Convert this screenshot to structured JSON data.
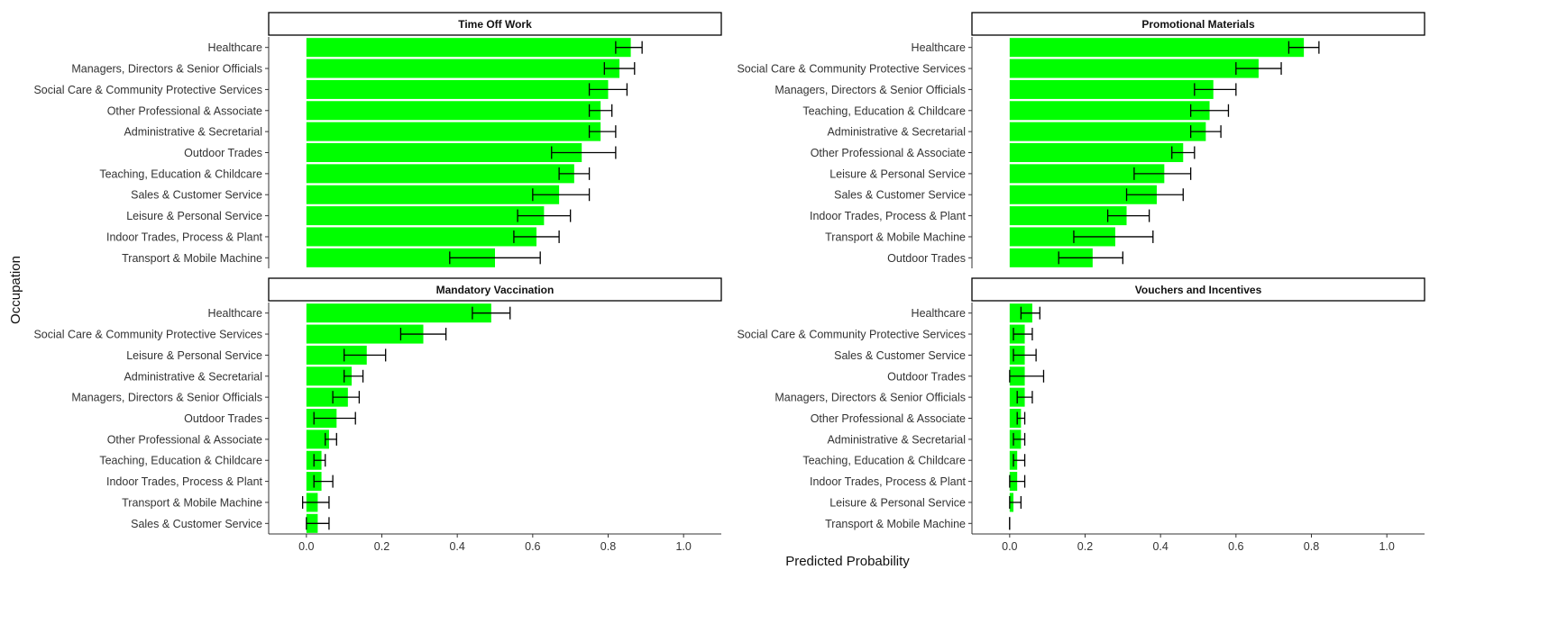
{
  "xlabel": "Predicted Probability",
  "ylabel": "Occupation",
  "colors": {
    "bar": "#00ff00",
    "error": "#000000",
    "strip_fill": "#ffffff",
    "axis": "#333333",
    "text": "#333333"
  },
  "xticks": [
    "0.0",
    "0.2",
    "0.4",
    "0.6",
    "0.8",
    "1.0"
  ],
  "chart_data": [
    {
      "type": "bar",
      "orientation": "horizontal",
      "title": "Time Off Work",
      "xlim": [
        -0.1,
        1.1
      ],
      "categories": [
        "Healthcare",
        "Managers, Directors & Senior Officials",
        "Social Care & Community Protective Services",
        "Other Professional & Associate",
        "Administrative & Secretarial",
        "Outdoor Trades",
        "Teaching, Education & Childcare",
        "Sales & Customer Service",
        "Leisure & Personal Service",
        "Indoor Trades, Process & Plant",
        "Transport & Mobile Machine"
      ],
      "values": [
        0.86,
        0.83,
        0.8,
        0.78,
        0.78,
        0.73,
        0.71,
        0.67,
        0.63,
        0.61,
        0.5
      ],
      "lower": [
        0.82,
        0.79,
        0.75,
        0.75,
        0.75,
        0.65,
        0.67,
        0.6,
        0.56,
        0.55,
        0.38
      ],
      "upper": [
        0.89,
        0.87,
        0.85,
        0.81,
        0.82,
        0.82,
        0.75,
        0.75,
        0.7,
        0.67,
        0.62
      ]
    },
    {
      "type": "bar",
      "orientation": "horizontal",
      "title": "Promotional Materials",
      "xlim": [
        -0.1,
        1.1
      ],
      "categories": [
        "Healthcare",
        "Social Care & Community Protective Services",
        "Managers, Directors & Senior Officials",
        "Teaching, Education & Childcare",
        "Administrative & Secretarial",
        "Other Professional & Associate",
        "Leisure & Personal Service",
        "Sales & Customer Service",
        "Indoor Trades, Process & Plant",
        "Transport & Mobile Machine",
        "Outdoor Trades"
      ],
      "values": [
        0.78,
        0.66,
        0.54,
        0.53,
        0.52,
        0.46,
        0.41,
        0.39,
        0.31,
        0.28,
        0.22
      ],
      "lower": [
        0.74,
        0.6,
        0.49,
        0.48,
        0.48,
        0.43,
        0.33,
        0.31,
        0.26,
        0.17,
        0.13
      ],
      "upper": [
        0.82,
        0.72,
        0.6,
        0.58,
        0.56,
        0.49,
        0.48,
        0.46,
        0.37,
        0.38,
        0.3
      ]
    },
    {
      "type": "bar",
      "orientation": "horizontal",
      "title": "Mandatory Vaccination",
      "xlim": [
        -0.1,
        1.1
      ],
      "categories": [
        "Healthcare",
        "Social Care & Community Protective Services",
        "Leisure & Personal Service",
        "Administrative & Secretarial",
        "Managers, Directors & Senior Officials",
        "Outdoor Trades",
        "Other Professional & Associate",
        "Teaching, Education & Childcare",
        "Indoor Trades, Process & Plant",
        "Transport & Mobile Machine",
        "Sales & Customer Service"
      ],
      "values": [
        0.49,
        0.31,
        0.16,
        0.12,
        0.11,
        0.08,
        0.06,
        0.04,
        0.04,
        0.03,
        0.03
      ],
      "lower": [
        0.44,
        0.25,
        0.1,
        0.1,
        0.07,
        0.02,
        0.05,
        0.02,
        0.02,
        -0.01,
        0.0
      ],
      "upper": [
        0.54,
        0.37,
        0.21,
        0.15,
        0.14,
        0.13,
        0.08,
        0.05,
        0.07,
        0.06,
        0.06
      ]
    },
    {
      "type": "bar",
      "orientation": "horizontal",
      "title": "Vouchers and Incentives",
      "xlim": [
        -0.1,
        1.1
      ],
      "categories": [
        "Healthcare",
        "Social Care & Community Protective Services",
        "Sales & Customer Service",
        "Outdoor Trades",
        "Managers, Directors & Senior Officials",
        "Other Professional & Associate",
        "Administrative & Secretarial",
        "Teaching, Education & Childcare",
        "Indoor Trades, Process & Plant",
        "Leisure & Personal Service",
        "Transport & Mobile Machine"
      ],
      "values": [
        0.06,
        0.04,
        0.04,
        0.04,
        0.04,
        0.03,
        0.03,
        0.02,
        0.02,
        0.01,
        0.0
      ],
      "lower": [
        0.03,
        0.01,
        0.01,
        0.0,
        0.02,
        0.02,
        0.01,
        0.01,
        0.0,
        0.0,
        0.0
      ],
      "upper": [
        0.08,
        0.06,
        0.07,
        0.09,
        0.06,
        0.04,
        0.04,
        0.04,
        0.04,
        0.03,
        0.0
      ]
    }
  ]
}
